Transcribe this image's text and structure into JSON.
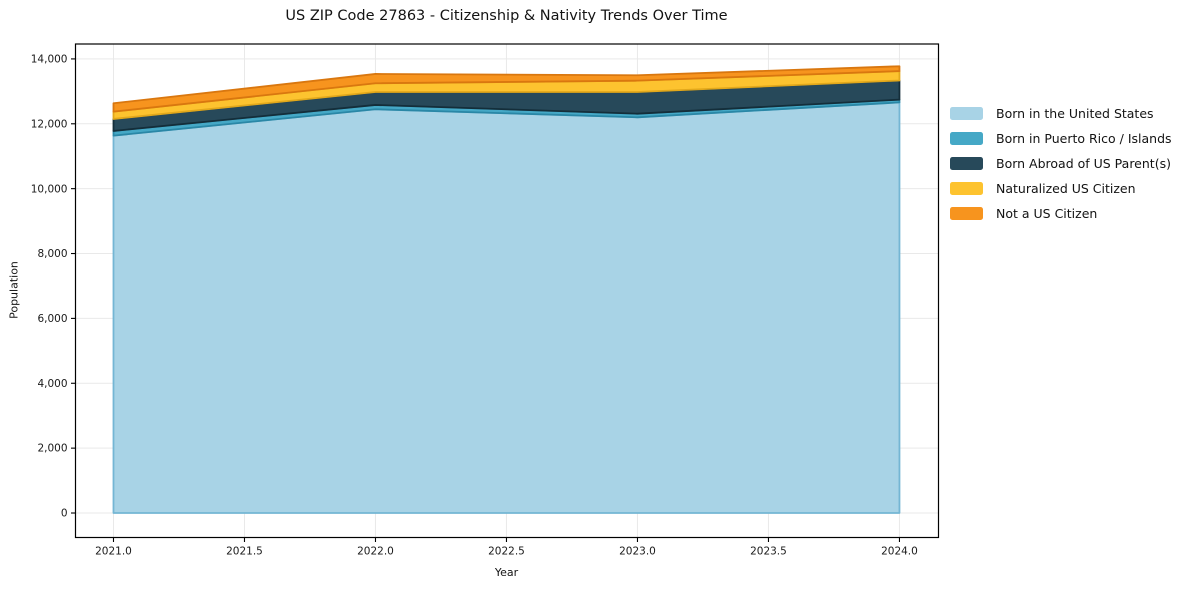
{
  "title": "US ZIP Code 27863 - Citizenship & Nativity Trends Over Time",
  "chart_data": {
    "type": "area",
    "stacked": true,
    "title": "US ZIP Code 27863 - Citizenship & Nativity Trends Over Time",
    "xlabel": "Year",
    "ylabel": "Population",
    "x": [
      2021,
      2022,
      2023,
      2024
    ],
    "series": [
      {
        "name": "Born in the United States",
        "values": [
          11635,
          12448,
          12200,
          12660
        ],
        "color": "#a8d3e6",
        "edge_color": "#74b6d4"
      },
      {
        "name": "Born in Puerto Rico / Islands",
        "values": [
          145,
          133,
          112,
          85
        ],
        "color": "#45a8c6",
        "edge_color": "#2a87a6"
      },
      {
        "name": "Born Abroad of US Parent(s)",
        "values": [
          370,
          400,
          668,
          590
        ],
        "color": "#27495a",
        "edge_color": "#142e3a"
      },
      {
        "name": "Naturalized US Citizen",
        "values": [
          225,
          269,
          350,
          290
        ],
        "color": "#fdc32f",
        "edge_color": "#e2a81b"
      },
      {
        "name": "Not a US Citizen",
        "values": [
          258,
          287,
          166,
          150
        ],
        "color": "#f7941e",
        "edge_color": "#d9770f"
      }
    ],
    "totals": [
      12633,
      13537,
      13496,
      13775
    ],
    "xlim": [
      2020.855,
      2024.149
    ],
    "ylim": [
      -755,
      14460
    ],
    "x_ticks": {
      "values": [
        2021.0,
        2021.5,
        2022.0,
        2022.5,
        2023.0,
        2023.5,
        2024.0
      ],
      "labels": [
        "2021.0",
        "2021.5",
        "2022.0",
        "2022.5",
        "2023.0",
        "2023.5",
        "2024.0"
      ]
    },
    "y_ticks": {
      "values": [
        0,
        2000,
        4000,
        6000,
        8000,
        10000,
        12000,
        14000
      ],
      "labels": [
        "0",
        "2,000",
        "4,000",
        "6,000",
        "8,000",
        "10,000",
        "12,000",
        "14,000"
      ]
    },
    "grid": true,
    "grid_color": "#e9e9e9",
    "spine_color": "#000000",
    "tick_label_color": "#1a1a1a",
    "legend_position": "right of plot"
  }
}
